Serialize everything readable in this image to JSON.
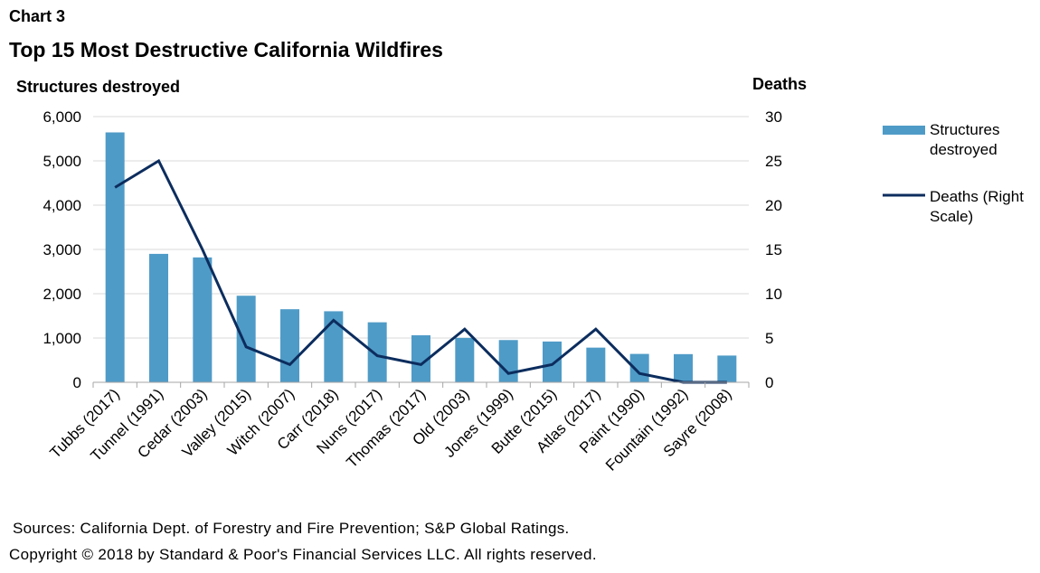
{
  "header": {
    "chart_label": "Chart 3",
    "title": "Top 15 Most Destructive California Wildfires"
  },
  "footer": {
    "sources": "Sources: California Dept. of Forestry and Fire Prevention; S&P Global Ratings.",
    "copyright": "Copyright © 2018 by Standard & Poor's Financial Services LLC. All rights reserved."
  },
  "colors": {
    "bar": "#4f9bc7",
    "line": "#0c2d5e",
    "grid": "#d9d9d9",
    "axis": "#a6a6a6"
  },
  "chart_data": {
    "type": "bar",
    "title": "Top 15 Most Destructive California Wildfires",
    "categories": [
      "Tubbs (2017)",
      "Tunnel (1991)",
      "Cedar (2003)",
      "Valley (2015)",
      "Witch (2007)",
      "Carr (2018)",
      "Nuns (2017)",
      "Thomas (2017)",
      "Old (2003)",
      "Jones (1999)",
      "Butte (2015)",
      "Atlas (2017)",
      "Paint (1990)",
      "Fountain (1992)",
      "Sayre (2008)"
    ],
    "y_left_label": "Structures destroyed",
    "y_right_label": "Deaths",
    "y_left_lim": [
      0,
      6000
    ],
    "y_right_lim": [
      0,
      30
    ],
    "y_left_ticks": [
      "0",
      "1,000",
      "2,000",
      "3,000",
      "4,000",
      "5,000",
      "6,000"
    ],
    "y_right_ticks": [
      "0",
      "5",
      "10",
      "15",
      "20",
      "25",
      "30"
    ],
    "grid": true,
    "legend_position": "right",
    "series": [
      {
        "name": "Structures destroyed",
        "type": "bar",
        "axis": "left",
        "values": [
          5643,
          2900,
          2820,
          1955,
          1650,
          1604,
          1355,
          1063,
          1003,
          954,
          921,
          783,
          641,
          636,
          604
        ]
      },
      {
        "name": "Deaths (Right Scale)",
        "type": "line",
        "axis": "right",
        "values": [
          22,
          25,
          15,
          4,
          2,
          7,
          3,
          2,
          6,
          1,
          2,
          6,
          1,
          0,
          0
        ]
      }
    ]
  }
}
